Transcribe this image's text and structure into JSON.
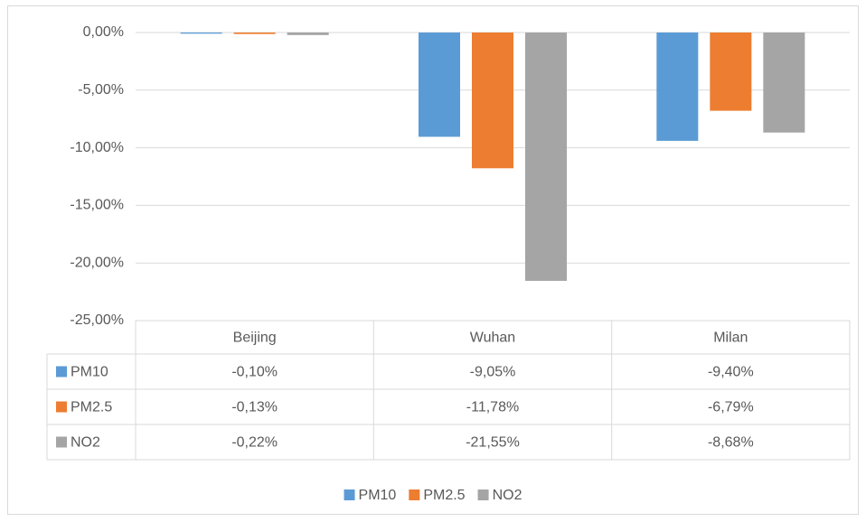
{
  "chart_data": {
    "type": "bar",
    "categories": [
      "Beijing",
      "Wuhan",
      "Milan"
    ],
    "series": [
      {
        "name": "PM10",
        "color": "#5b9bd5",
        "values": [
          -0.1,
          -9.05,
          -9.4
        ],
        "value_labels": [
          "-0,10%",
          "-9,05%",
          "-9,40%"
        ]
      },
      {
        "name": "PM2.5",
        "color": "#ed7d31",
        "values": [
          -0.13,
          -11.78,
          -6.79
        ],
        "value_labels": [
          "-0,13%",
          "-11,78%",
          "-6,79%"
        ]
      },
      {
        "name": "NO2",
        "color": "#a5a5a5",
        "values": [
          -0.22,
          -21.55,
          -8.68
        ],
        "value_labels": [
          "-0,22%",
          "-21,55%",
          "-8,68%"
        ]
      }
    ],
    "ylim": [
      -25,
      0
    ],
    "yticks": [
      {
        "value": 0,
        "label": "0,00%"
      },
      {
        "value": -5,
        "label": "-5,00%"
      },
      {
        "value": -10,
        "label": "-10,00%"
      },
      {
        "value": -15,
        "label": "-15,00%"
      },
      {
        "value": -20,
        "label": "-20,00%"
      },
      {
        "value": -25,
        "label": "-25,00%"
      }
    ],
    "grid": true,
    "legend": "bottom",
    "data_table": true
  }
}
